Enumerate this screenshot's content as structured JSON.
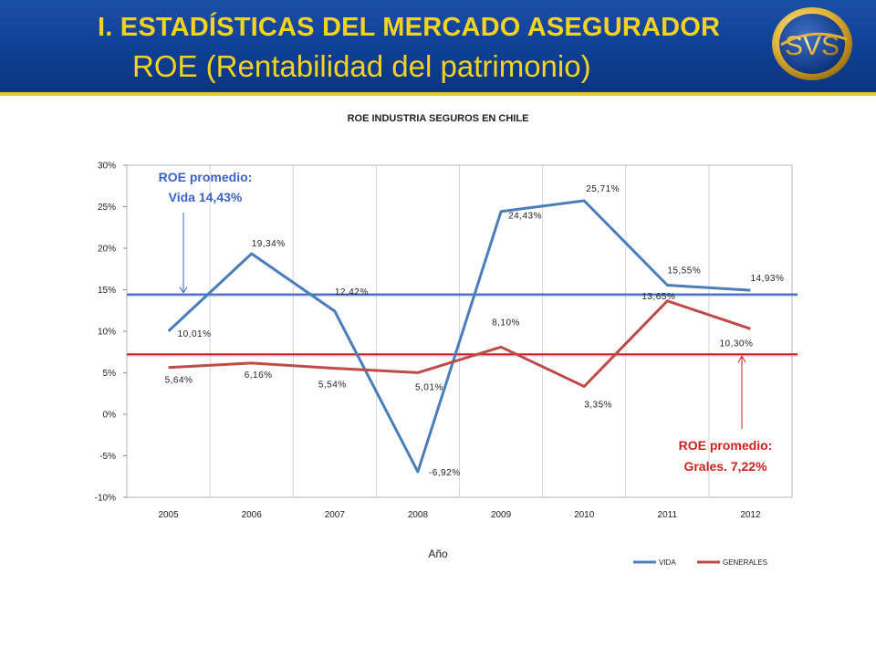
{
  "header": {
    "title_line1": "I. ESTADÍSTICAS DEL MERCADO ASEGURADOR",
    "title_line2": "ROE (Rentabilidad del patrimonio)",
    "logo_text": "SVS"
  },
  "colors": {
    "banner": "#0f3f93",
    "title_text": "#f5d31d",
    "vida": "#4a7ebb",
    "generales": "#be4b48",
    "avg_vida": "#3a62c9",
    "avg_generales": "#d0211f"
  },
  "chart_data": {
    "type": "line",
    "title": "ROE INDUSTRIA SEGUROS EN CHILE",
    "xlabel": "Año",
    "ylabel": "",
    "categories": [
      "2005",
      "2006",
      "2007",
      "2008",
      "2009",
      "2010",
      "2011",
      "2012"
    ],
    "ylim": [
      -10,
      30
    ],
    "yticks": [
      30,
      25,
      20,
      15,
      10,
      5,
      0,
      -5,
      -10
    ],
    "ytick_labels": [
      "30%",
      "25%",
      "20%",
      "15%",
      "10%",
      "5%",
      "0%",
      "-5%",
      "-10%"
    ],
    "grid": "vertical",
    "legend_position": "bottom-right",
    "series": [
      {
        "name": "VIDA",
        "values": [
          10.01,
          19.34,
          12.42,
          -6.92,
          24.43,
          25.71,
          15.55,
          14.93
        ],
        "labels": [
          "10,01%",
          "19,34%",
          "12,42%",
          "-6,92%",
          "24,43%",
          "25,71%",
          "15,55%",
          "14,93%"
        ]
      },
      {
        "name": "GENERALES",
        "values": [
          5.64,
          6.16,
          5.54,
          5.01,
          8.1,
          3.35,
          13.65,
          10.3
        ],
        "labels": [
          "5,64%",
          "6,16%",
          "5,54%",
          "5,01%",
          "8,10%",
          "3,35%",
          "13,65%",
          "10,30%"
        ]
      }
    ],
    "averages": [
      {
        "series": "VIDA",
        "value": 14.43,
        "text_line1": "ROE promedio:",
        "text_line2": "Vida 14,43%"
      },
      {
        "series": "GENERALES",
        "value": 7.22,
        "text_line1": "ROE promedio:",
        "text_line2": "Grales. 7,22%"
      }
    ]
  }
}
